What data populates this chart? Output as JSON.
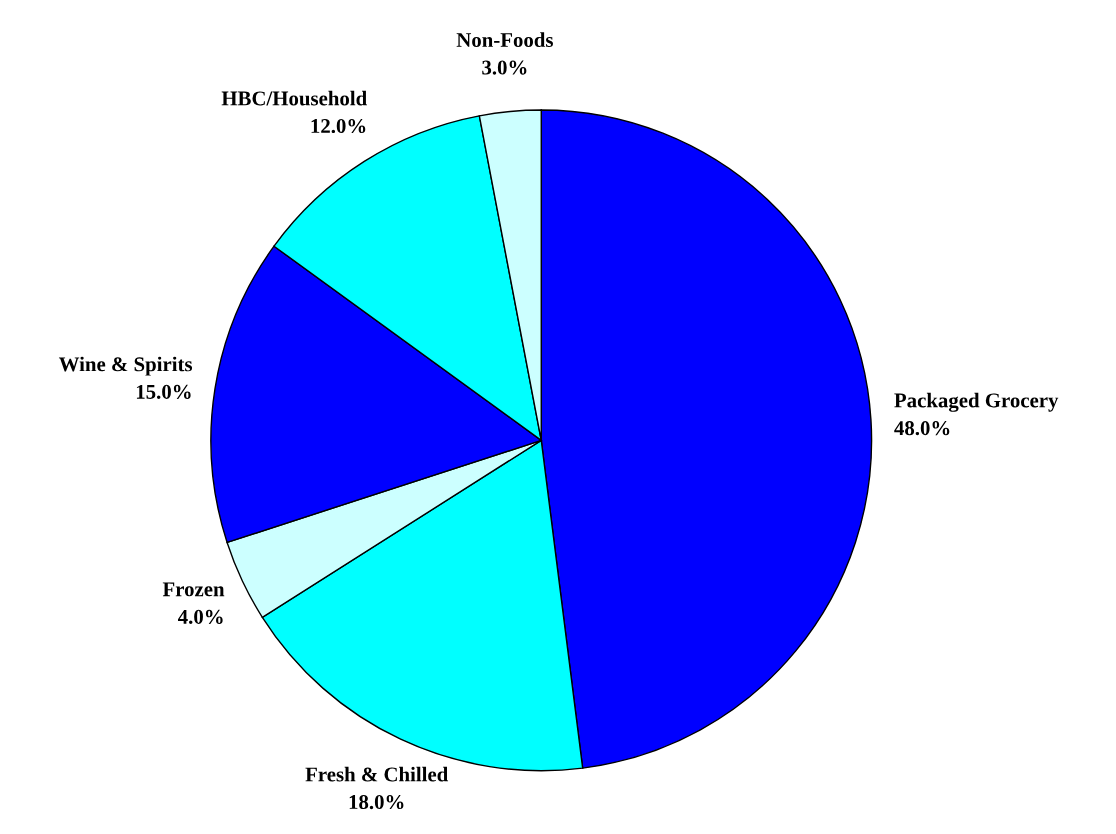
{
  "chart_data": {
    "type": "pie",
    "categories": [
      "Packaged Grocery",
      "Fresh & Chilled",
      "Frozen",
      "Wine & Spirits",
      "HBC/Household",
      "Non-Foods"
    ],
    "values": [
      48,
      18,
      4,
      15,
      12,
      3
    ],
    "colors": [
      "#0000ff",
      "#00ffff",
      "#ccffff",
      "#0000ff",
      "#00ffff",
      "#ccffff"
    ],
    "value_labels": [
      "48.0%",
      "18.0%",
      "4.0%",
      "15.0%",
      "12.0%",
      "3.0%"
    ],
    "legend": false
  }
}
